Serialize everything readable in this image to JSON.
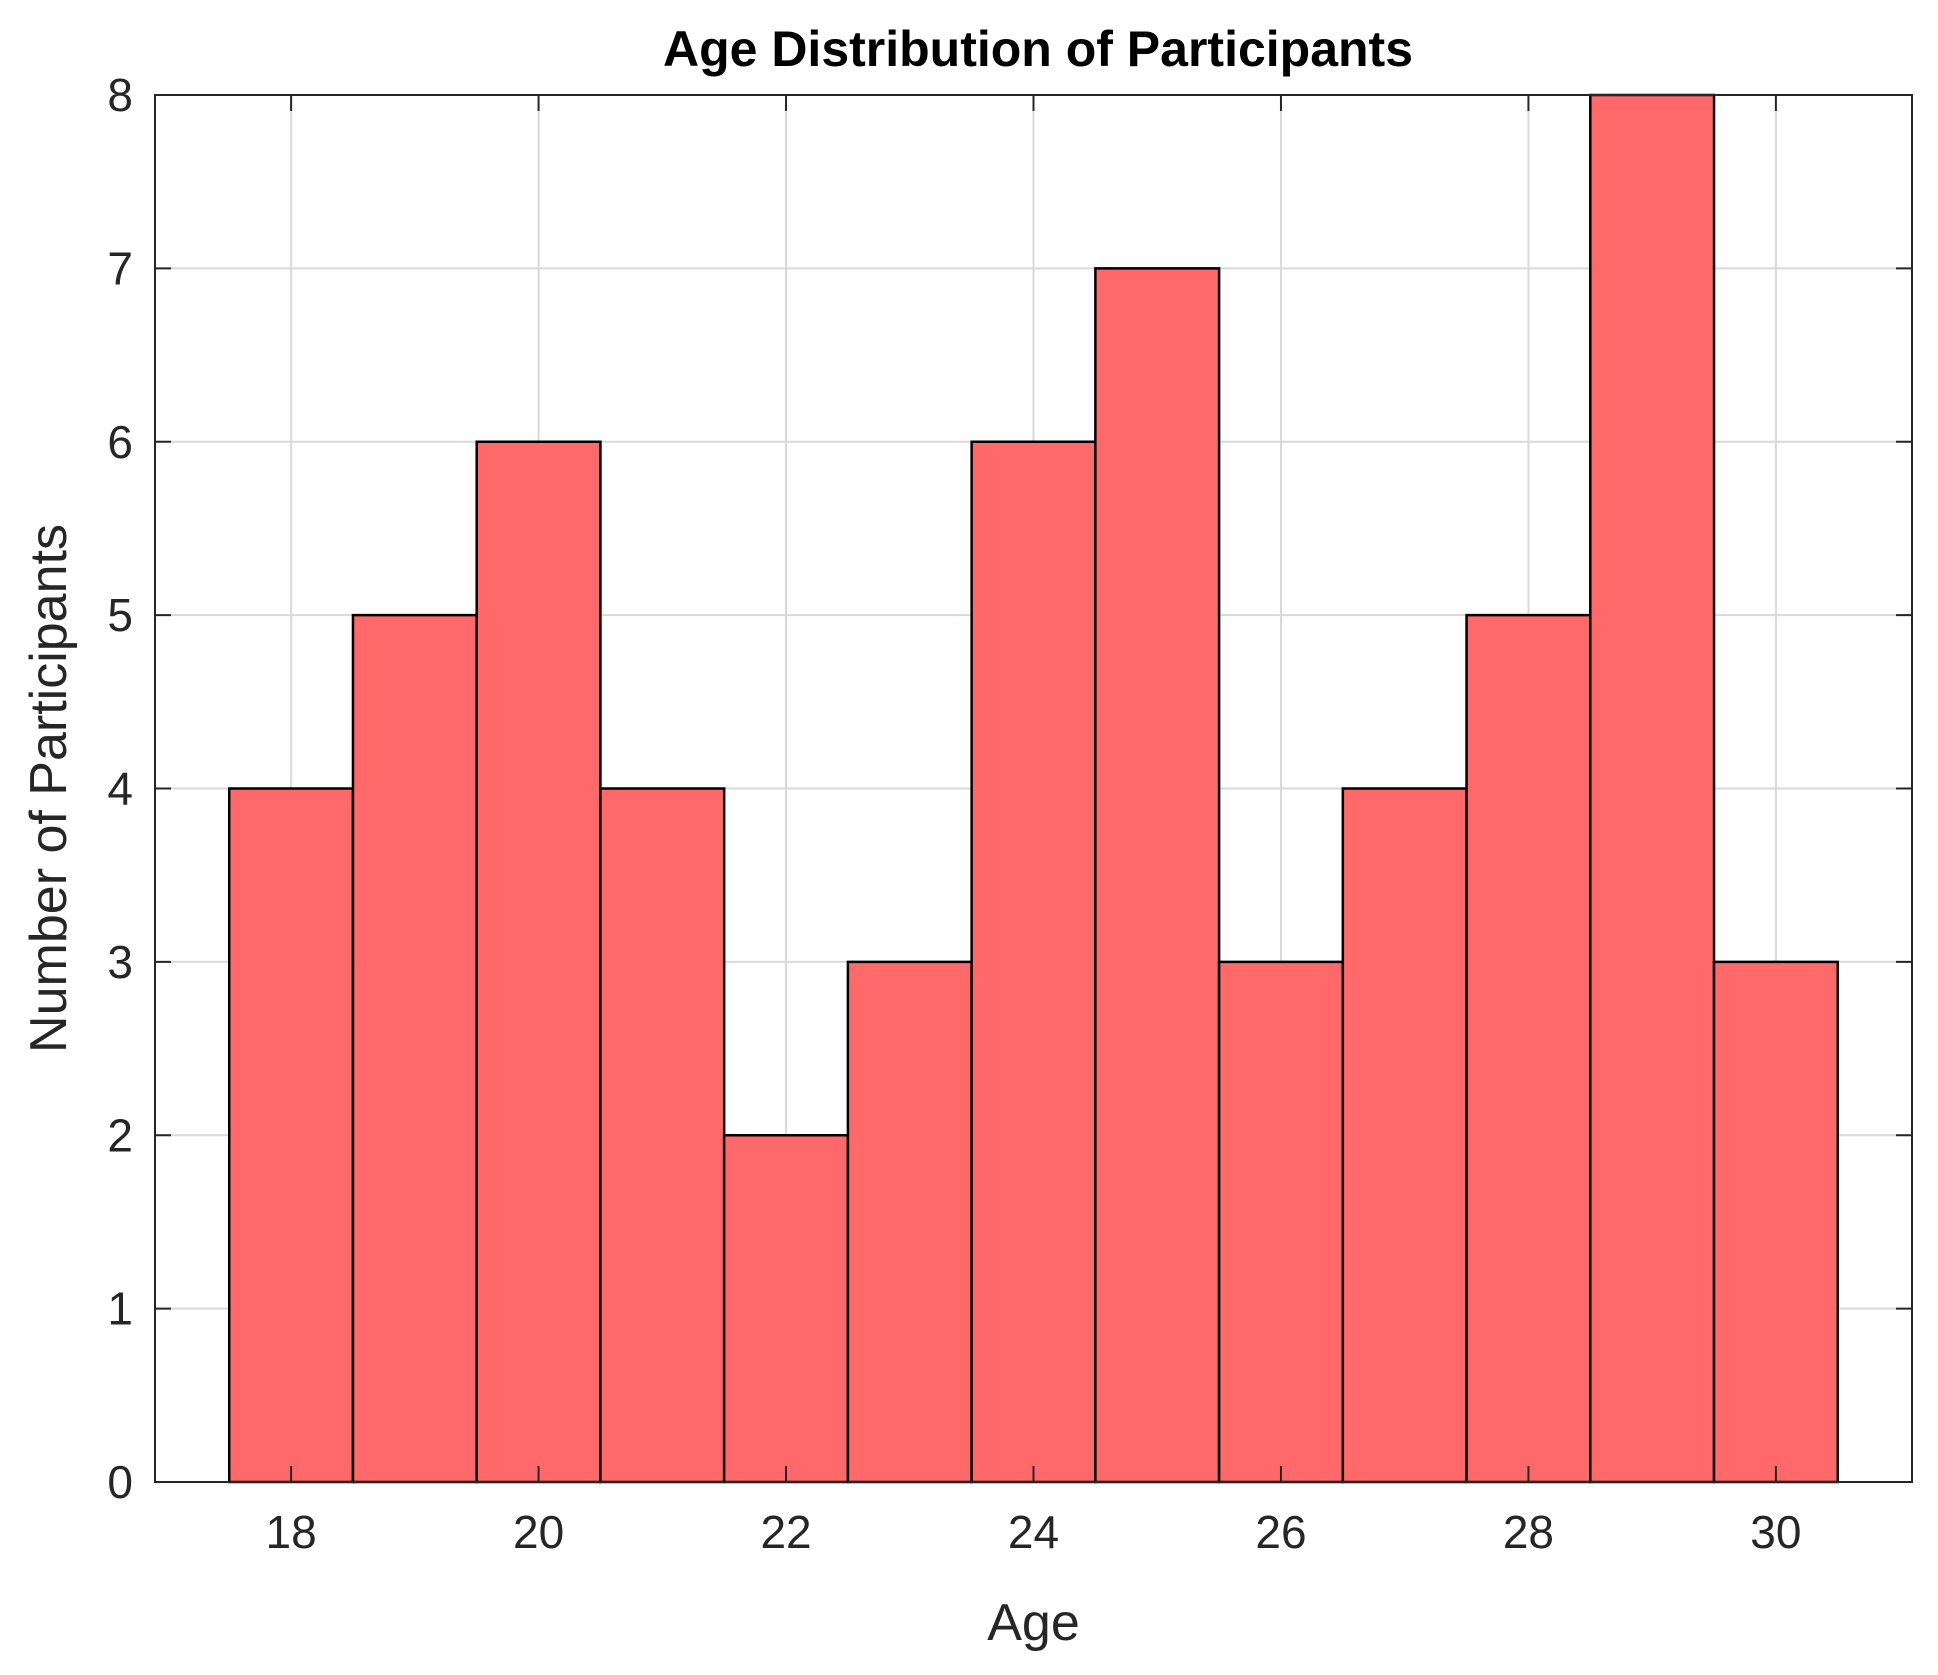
{
  "chart_data": {
    "type": "bar",
    "title": "Age Distribution of Participants",
    "xlabel": "Age",
    "ylabel": "Number of Participants",
    "x": [
      18,
      19,
      20,
      21,
      22,
      23,
      24,
      25,
      26,
      27,
      28,
      29,
      30
    ],
    "values": [
      4,
      5,
      6,
      4,
      2,
      3,
      6,
      7,
      3,
      4,
      5,
      8,
      3
    ],
    "bin_width": 1,
    "xlim": [
      16.9,
      31.1
    ],
    "ylim": [
      0,
      8
    ],
    "xticks": [
      18,
      20,
      22,
      24,
      26,
      28,
      30
    ],
    "yticks": [
      0,
      1,
      2,
      3,
      4,
      5,
      6,
      7,
      8
    ],
    "grid": true,
    "bar_color": "#ff6666",
    "edge_color": "#000000"
  }
}
